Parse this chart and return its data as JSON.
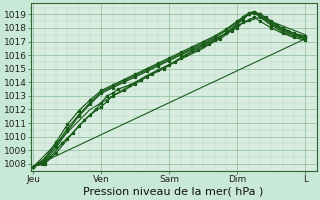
{
  "bg_color": "#c8e8d8",
  "plot_bg_color": "#d8ede0",
  "grid_major_color": "#88bb99",
  "grid_minor_color": "#aaccbb",
  "line_color": "#1a5c1a",
  "xlabel": "Pression niveau de la mer( hPa )",
  "ylim": [
    1007.5,
    1019.8
  ],
  "yticks": [
    1008,
    1009,
    1010,
    1011,
    1012,
    1013,
    1014,
    1015,
    1016,
    1017,
    1018,
    1019
  ],
  "xtick_labels": [
    "Jeu",
    "Ven",
    "Sam",
    "Dim",
    "L"
  ],
  "xtick_positions": [
    0,
    24,
    48,
    72,
    96
  ],
  "xlim": [
    -1,
    100
  ],
  "lines": [
    [
      0,
      1007.8,
      3,
      1008.0,
      6,
      1008.5,
      10,
      1009.5,
      14,
      1010.3,
      18,
      1011.2,
      22,
      1012.0,
      24,
      1012.5,
      26,
      1013.0,
      28,
      1013.2,
      30,
      1013.5,
      34,
      1013.8,
      38,
      1014.2,
      42,
      1014.6,
      46,
      1015.0,
      50,
      1015.5,
      54,
      1016.0,
      58,
      1016.4,
      62,
      1016.8,
      66,
      1017.2,
      70,
      1017.8,
      72,
      1018.2,
      74,
      1018.8,
      76,
      1019.0,
      78,
      1019.2,
      80,
      1019.0,
      82,
      1018.8,
      84,
      1018.5,
      86,
      1018.2,
      88,
      1018.0,
      90,
      1017.8,
      92,
      1017.6,
      94,
      1017.4,
      96,
      1017.3
    ],
    [
      0,
      1007.8,
      4,
      1008.0,
      8,
      1008.8,
      12,
      1009.8,
      16,
      1010.8,
      20,
      1011.6,
      24,
      1012.2,
      26,
      1012.6,
      28,
      1013.0,
      32,
      1013.4,
      36,
      1013.9,
      40,
      1014.4,
      44,
      1014.9,
      48,
      1015.3,
      52,
      1015.8,
      56,
      1016.3,
      60,
      1016.7,
      64,
      1017.1,
      68,
      1017.6,
      72,
      1018.0,
      74,
      1018.4,
      76,
      1018.6,
      78,
      1018.8,
      80,
      1018.5,
      84,
      1018.0,
      88,
      1017.6,
      92,
      1017.3,
      96,
      1017.1
    ],
    [
      0,
      1007.8,
      4,
      1008.2,
      8,
      1009.2,
      12,
      1010.4,
      16,
      1011.5,
      20,
      1012.4,
      24,
      1013.2,
      28,
      1013.6,
      32,
      1014.0,
      36,
      1014.4,
      40,
      1014.8,
      44,
      1015.2,
      48,
      1015.6,
      52,
      1016.0,
      56,
      1016.4,
      60,
      1016.8,
      64,
      1017.2,
      68,
      1017.6,
      72,
      1018.3,
      74,
      1018.6,
      76,
      1019.0,
      78,
      1019.1,
      80,
      1018.8,
      84,
      1018.2,
      88,
      1017.7,
      92,
      1017.4,
      96,
      1017.2
    ],
    [
      0,
      1007.8,
      4,
      1008.3,
      8,
      1009.4,
      12,
      1010.6,
      16,
      1011.6,
      20,
      1012.5,
      24,
      1013.3,
      28,
      1013.7,
      32,
      1014.1,
      36,
      1014.5,
      40,
      1014.9,
      44,
      1015.3,
      48,
      1015.7,
      52,
      1016.1,
      56,
      1016.5,
      60,
      1016.9,
      64,
      1017.3,
      68,
      1017.8,
      72,
      1018.4,
      74,
      1018.7,
      76,
      1019.0,
      78,
      1019.1,
      80,
      1018.9,
      84,
      1018.3,
      88,
      1017.8,
      92,
      1017.5,
      96,
      1017.3
    ],
    [
      0,
      1007.8,
      4,
      1008.4,
      8,
      1009.6,
      12,
      1010.9,
      16,
      1011.9,
      20,
      1012.7,
      24,
      1013.4,
      28,
      1013.8,
      32,
      1014.2,
      36,
      1014.6,
      40,
      1015.0,
      44,
      1015.4,
      48,
      1015.8,
      52,
      1016.2,
      56,
      1016.6,
      60,
      1017.0,
      64,
      1017.4,
      68,
      1017.9,
      72,
      1018.5,
      74,
      1018.8,
      76,
      1019.1,
      78,
      1019.2,
      80,
      1019.0,
      84,
      1018.4,
      88,
      1017.9,
      92,
      1017.6,
      96,
      1017.4
    ],
    [
      0,
      1007.8,
      96,
      1017.2
    ],
    [
      0,
      1007.8,
      20,
      1012.0,
      40,
      1014.5,
      60,
      1016.5,
      72,
      1018.2,
      80,
      1018.8,
      96,
      1017.5
    ]
  ],
  "marker_lines": [
    0,
    1,
    2,
    3,
    4
  ],
  "xlabel_fontsize": 8,
  "tick_fontsize": 6.5
}
